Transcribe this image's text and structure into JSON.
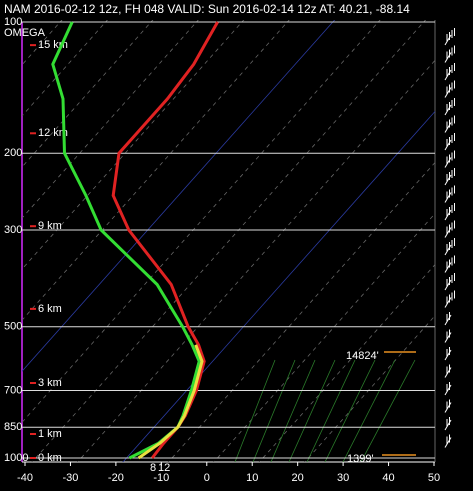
{
  "chart_data": {
    "type": "skewt",
    "title": "NAM 2016-02-12 12z, FH 048   VALID: Sun 2016-02-14 12z   AT: 40.21, -88.14",
    "levels": [
      1000,
      925,
      850,
      800,
      700,
      600,
      550,
      500,
      400,
      300,
      250,
      200,
      150,
      125,
      100
    ],
    "series": [
      {
        "color": "#e02222",
        "values": [
          -12,
          -12.4,
          -12.4,
          -13,
          -15.5,
          -19.5,
          -24,
          -29.8,
          -41.8,
          -61.8,
          -72,
          -79,
          -79,
          -80,
          -83
        ]
      },
      {
        "color": "#33dd33",
        "values": [
          -17,
          -13.5,
          -12.4,
          -13.5,
          -16.6,
          -20.6,
          -25.4,
          -31,
          -44.9,
          -67.9,
          -78,
          -91,
          -102,
          -111,
          -115
        ]
      },
      {
        "color": "#e8e040",
        "values": [
          -15,
          -13.2,
          -12.4,
          -13.2,
          -16,
          -20,
          -24.6,
          null,
          null,
          null,
          null,
          null,
          null,
          null,
          null
        ]
      }
    ],
    "ylim": [
      1000,
      100
    ],
    "yticks": [
      100,
      200,
      300,
      500,
      700,
      850,
      1000
    ],
    "log_y": true,
    "xlim": [
      -40,
      50
    ],
    "xticks": [
      -40,
      -30,
      -20,
      -10,
      0,
      10,
      20,
      30,
      40,
      50
    ],
    "height_ticks": [
      {
        "value": 113,
        "label": "15 km"
      },
      {
        "value": 180,
        "label": "12 km"
      },
      {
        "value": 294,
        "label": "9 km"
      },
      {
        "value": 455,
        "label": "6 km"
      },
      {
        "value": 673,
        "label": "3 km"
      },
      {
        "value": 881,
        "label": "1 km"
      },
      {
        "value": 1000,
        "label": "0 km"
      }
    ],
    "annotations": [
      "OMEGA",
      "14824'",
      "1399'",
      "8",
      "12"
    ]
  }
}
